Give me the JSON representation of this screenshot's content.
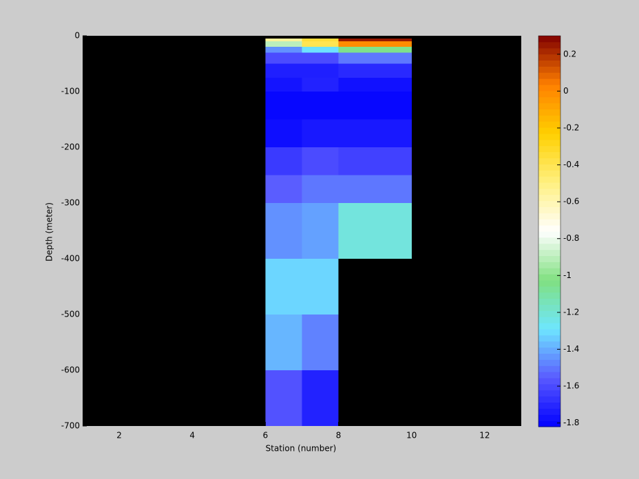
{
  "chart_data": {
    "type": "heatmap",
    "x_label": "Station (number)",
    "y_label": "Depth (meter)",
    "xlim": [
      1,
      13
    ],
    "xticks": [
      2,
      4,
      6,
      8,
      10,
      12
    ],
    "ylim": [
      -700,
      0
    ],
    "yticks": [
      0,
      -100,
      -200,
      -300,
      -400,
      -500,
      -600,
      -700
    ],
    "x_edges": [
      6,
      7,
      8,
      9,
      10
    ],
    "y_edges": [
      -5,
      -10,
      -20,
      -30,
      -50,
      -75,
      -100,
      -150,
      -200,
      -250,
      -300,
      -400,
      -500,
      -600,
      -700
    ],
    "values": [
      [
        -0.55,
        -0.35,
        0.25,
        0.25
      ],
      [
        -0.9,
        -0.4,
        0.0,
        0.0
      ],
      [
        -1.45,
        -1.3,
        -1.05,
        -1.05
      ],
      [
        -1.6,
        -1.6,
        -1.5,
        -1.5
      ],
      [
        -1.73,
        -1.73,
        -1.7,
        -1.7
      ],
      [
        -1.76,
        -1.72,
        -1.77,
        -1.77
      ],
      [
        -1.8,
        -1.8,
        -1.8,
        -1.8
      ],
      [
        -1.78,
        -1.75,
        -1.75,
        -1.75
      ],
      [
        -1.65,
        -1.6,
        -1.63,
        -1.63
      ],
      [
        -1.55,
        -1.5,
        -1.5,
        -1.5
      ],
      [
        -1.45,
        -1.42,
        -1.22,
        -1.22
      ],
      [
        -1.32,
        -1.32,
        null,
        null
      ],
      [
        -1.38,
        -1.48,
        null,
        null
      ],
      [
        -1.58,
        -1.72,
        null,
        null
      ]
    ],
    "axes_color": "#000000",
    "clim": [
      -1.82,
      0.3
    ],
    "cticks": [
      0.2,
      0,
      -0.2,
      -0.4,
      -0.6,
      -0.8,
      -1,
      -1.2,
      -1.4,
      -1.6,
      -1.8
    ],
    "colormap": [
      "#0000ff",
      "#5a5aff",
      "#6ee6ff",
      "#80e080",
      "#ffffff",
      "#fff080",
      "#ffd000",
      "#ff8000",
      "#800000"
    ],
    "colorbar_levels": 64
  }
}
